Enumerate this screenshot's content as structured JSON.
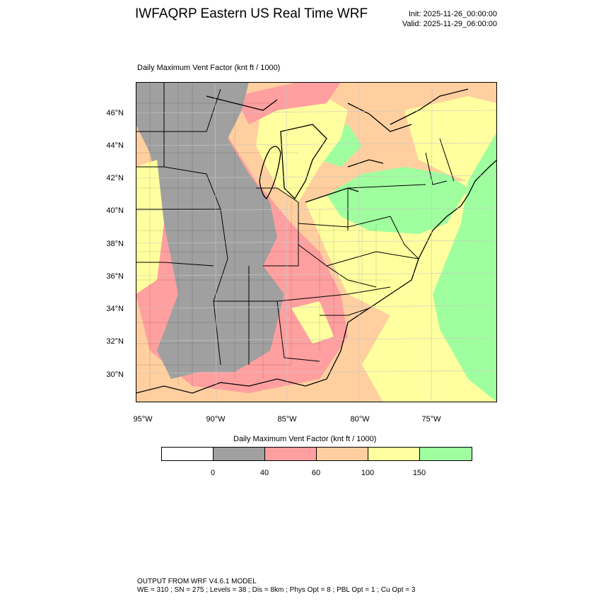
{
  "header": {
    "title": "IWFAQRP Eastern US Real Time WRF",
    "init": "Init: 2025-11-26_00:00:00",
    "valid": "Valid: 2025-11-29_06:00:00"
  },
  "plot": {
    "label": "Daily Maximum Vent Factor   (knt ft / 1000)",
    "lat_labels": [
      "46°N",
      "44°N",
      "42°N",
      "40°N",
      "38°N",
      "36°N",
      "34°N",
      "32°N",
      "30°N"
    ],
    "lon_labels": [
      "95°W",
      "90°W",
      "85°W",
      "80°W",
      "75°W"
    ]
  },
  "colorbar": {
    "title": "Daily Maximum Vent Factor  (knt ft / 1000)",
    "ticks": [
      "0",
      "40",
      "60",
      "100",
      "150"
    ],
    "levels": [
      {
        "label": "<0",
        "color": "#ffffff"
      },
      {
        "label": "0-40",
        "color": "#a0a0a0"
      },
      {
        "label": "40-60",
        "color": "#ff9f9f"
      },
      {
        "label": "60-100",
        "color": "#ffcf9f"
      },
      {
        "label": "100-150",
        "color": "#ffff9f"
      },
      {
        "label": ">150",
        "color": "#9fff9f"
      }
    ]
  },
  "footer": {
    "line1": "OUTPUT FROM WRF V4.6.1 MODEL",
    "line2": "WE = 310 ; SN = 275 ; Levels = 38 ; Dis = 8km ; Phys Opt = 8 ; PBL Opt = 1 ; Cu Opt = 3"
  }
}
